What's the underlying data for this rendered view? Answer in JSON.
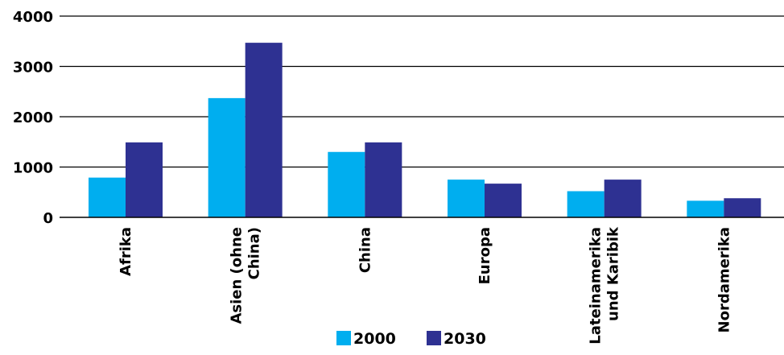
{
  "chart_data": {
    "type": "bar",
    "title": "",
    "xlabel": "",
    "ylabel": "",
    "ylim": [
      0,
      4000
    ],
    "yticks": [
      0,
      1000,
      2000,
      3000,
      4000
    ],
    "yticks_display": [
      "0",
      "1000",
      "2000",
      "3000",
      "4000"
    ],
    "grid": true,
    "legend_position": "bottom",
    "categories": [
      [
        "Afrika"
      ],
      [
        "Asien (ohne",
        "China)"
      ],
      [
        "China"
      ],
      [
        "Europa"
      ],
      [
        "Lateinamerika",
        "und Karibik"
      ],
      [
        "Nordamerika"
      ]
    ],
    "series": [
      {
        "name": "2000",
        "color": "#00aeef",
        "values": [
          790,
          2370,
          1300,
          750,
          520,
          330
        ]
      },
      {
        "name": "2030",
        "color": "#2e3192",
        "values": [
          1490,
          3470,
          1490,
          670,
          750,
          380
        ]
      }
    ]
  }
}
